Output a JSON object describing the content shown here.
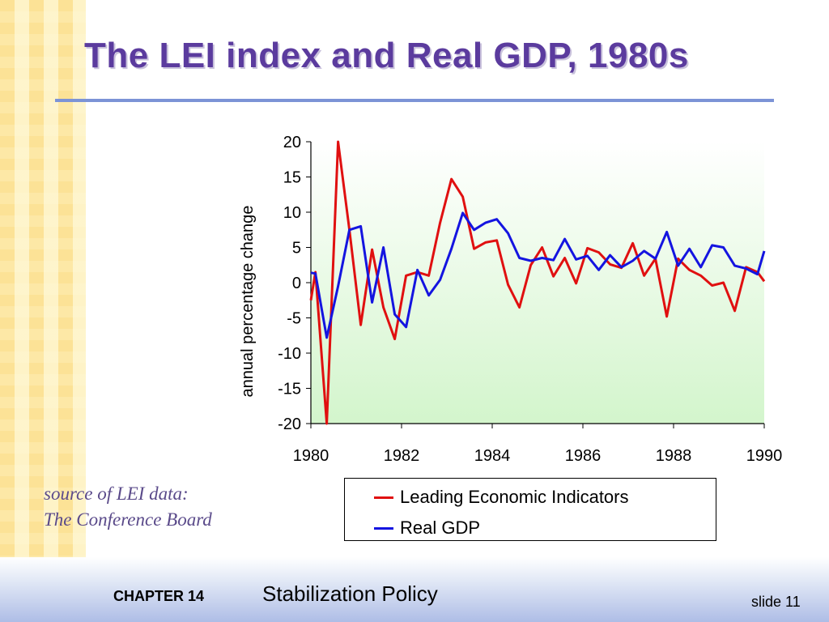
{
  "slide": {
    "title": "The LEI index and Real GDP, 1980s",
    "source_line1": "source of LEI data:",
    "source_line2": "The Conference Board",
    "footer_chapter": "CHAPTER 14",
    "footer_topic": "Stabilization Policy",
    "footer_slide": "slide 11"
  },
  "colors": {
    "title": "#5b3b9e",
    "rule": "#7c93d6",
    "plot_bg_top": "#ffffff",
    "plot_bg_bottom": "#d3f5cc"
  },
  "chart_data": {
    "type": "line",
    "ylabel": "annual percentage change",
    "xlabel": "",
    "xlim": [
      1980,
      1990
    ],
    "ylim": [
      -20,
      20
    ],
    "x_ticks": [
      1980,
      1982,
      1984,
      1986,
      1988,
      1990
    ],
    "y_ticks": [
      20,
      15,
      10,
      5,
      0,
      -5,
      -10,
      -15,
      -20
    ],
    "grid": false,
    "legend_position": "bottom-right",
    "series": [
      {
        "name": "Leading Economic Indicators",
        "color": "#e01010",
        "points": [
          [
            1980.0,
            -2.5
          ],
          [
            1980.1,
            1.5
          ],
          [
            1980.35,
            -20.0
          ],
          [
            1980.6,
            20.0
          ],
          [
            1980.85,
            7.5
          ],
          [
            1981.1,
            -6.0
          ],
          [
            1981.35,
            4.7
          ],
          [
            1981.6,
            -3.5
          ],
          [
            1981.85,
            -8.0
          ],
          [
            1982.1,
            1.0
          ],
          [
            1982.35,
            1.5
          ],
          [
            1982.6,
            1.0
          ],
          [
            1982.85,
            8.5
          ],
          [
            1983.1,
            14.7
          ],
          [
            1983.35,
            12.2
          ],
          [
            1983.6,
            4.8
          ],
          [
            1983.85,
            5.7
          ],
          [
            1984.1,
            6.0
          ],
          [
            1984.35,
            -0.3
          ],
          [
            1984.6,
            -3.5
          ],
          [
            1984.85,
            2.5
          ],
          [
            1985.1,
            5.0
          ],
          [
            1985.35,
            0.9
          ],
          [
            1985.6,
            3.5
          ],
          [
            1985.85,
            -0.1
          ],
          [
            1986.1,
            4.9
          ],
          [
            1986.35,
            4.3
          ],
          [
            1986.6,
            2.6
          ],
          [
            1986.85,
            2.1
          ],
          [
            1987.1,
            5.6
          ],
          [
            1987.35,
            1.0
          ],
          [
            1987.6,
            3.4
          ],
          [
            1987.85,
            -4.8
          ],
          [
            1988.1,
            3.4
          ],
          [
            1988.35,
            1.8
          ],
          [
            1988.6,
            1.0
          ],
          [
            1988.85,
            -0.4
          ],
          [
            1989.1,
            0.0
          ],
          [
            1989.35,
            -4.0
          ],
          [
            1989.6,
            2.2
          ],
          [
            1989.85,
            1.5
          ],
          [
            1990.0,
            0.2
          ]
        ]
      },
      {
        "name": "Real GDP",
        "color": "#1414e0",
        "points": [
          [
            1980.0,
            1.4
          ],
          [
            1980.1,
            1.3
          ],
          [
            1980.35,
            -7.8
          ],
          [
            1980.6,
            -0.5
          ],
          [
            1980.85,
            7.5
          ],
          [
            1981.1,
            8.0
          ],
          [
            1981.35,
            -2.8
          ],
          [
            1981.6,
            5.0
          ],
          [
            1981.85,
            -4.5
          ],
          [
            1982.1,
            -6.3
          ],
          [
            1982.35,
            1.8
          ],
          [
            1982.6,
            -1.8
          ],
          [
            1982.85,
            0.4
          ],
          [
            1983.1,
            4.8
          ],
          [
            1983.35,
            9.9
          ],
          [
            1983.6,
            7.5
          ],
          [
            1983.85,
            8.5
          ],
          [
            1984.1,
            9.0
          ],
          [
            1984.35,
            7.0
          ],
          [
            1984.6,
            3.5
          ],
          [
            1984.85,
            3.1
          ],
          [
            1985.1,
            3.5
          ],
          [
            1985.35,
            3.2
          ],
          [
            1985.6,
            6.2
          ],
          [
            1985.85,
            3.3
          ],
          [
            1986.1,
            3.8
          ],
          [
            1986.35,
            1.8
          ],
          [
            1986.6,
            3.9
          ],
          [
            1986.85,
            2.2
          ],
          [
            1987.1,
            3.1
          ],
          [
            1987.35,
            4.5
          ],
          [
            1987.6,
            3.4
          ],
          [
            1987.85,
            7.2
          ],
          [
            1988.1,
            2.4
          ],
          [
            1988.35,
            4.8
          ],
          [
            1988.6,
            2.2
          ],
          [
            1988.85,
            5.3
          ],
          [
            1989.1,
            5.0
          ],
          [
            1989.35,
            2.4
          ],
          [
            1989.6,
            2.0
          ],
          [
            1989.85,
            1.2
          ],
          [
            1990.0,
            4.5
          ]
        ]
      }
    ]
  }
}
